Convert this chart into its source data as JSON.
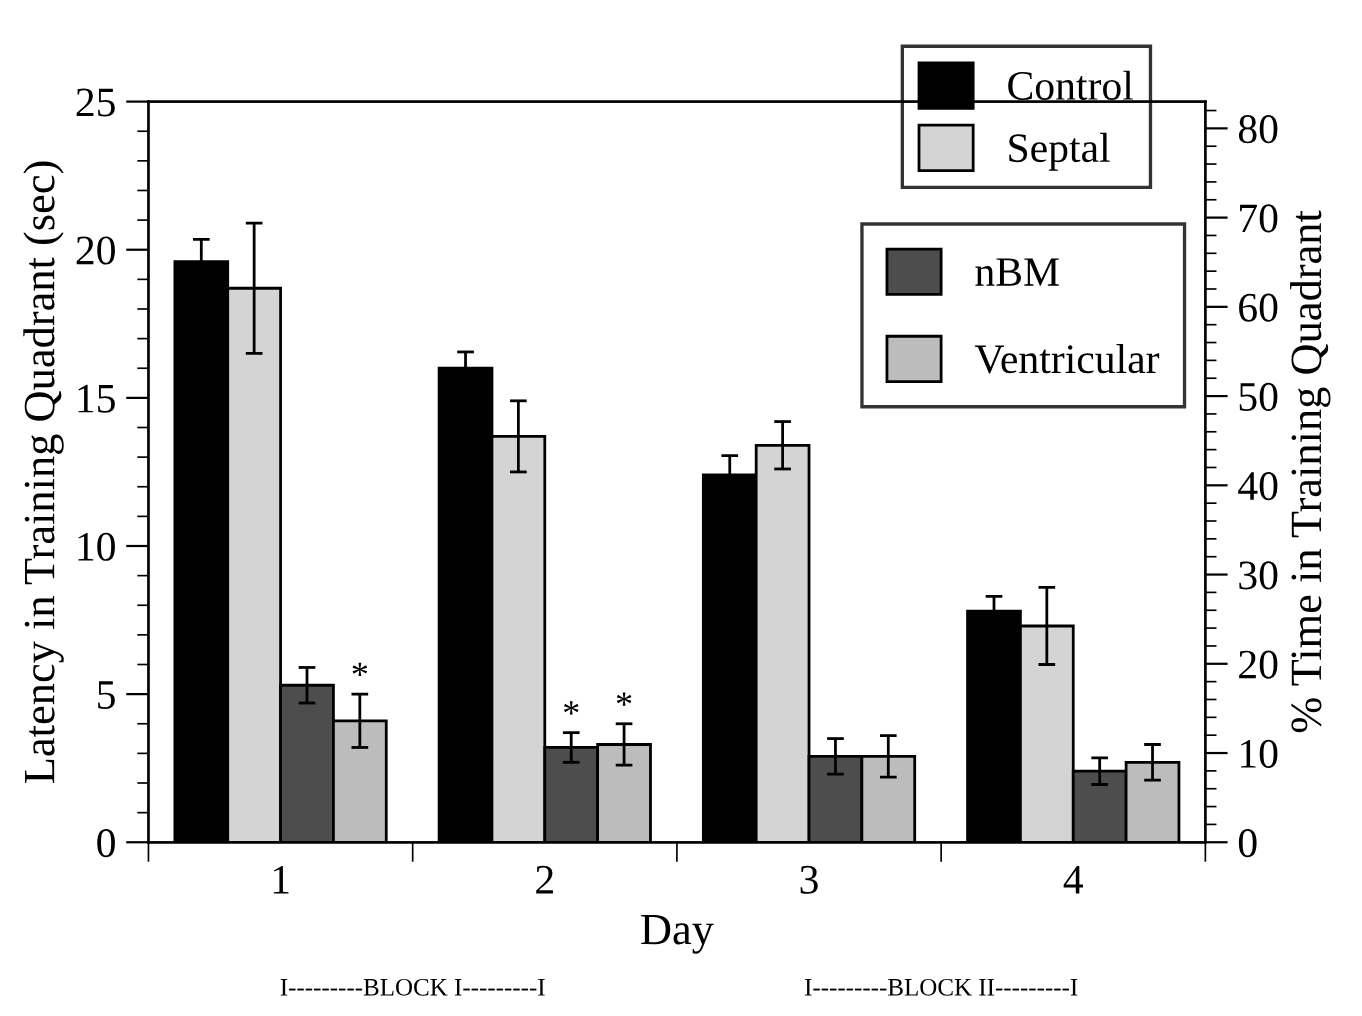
{
  "chart_data": {
    "type": "bar",
    "xlabel": "Day",
    "ylabel": "Latency in Training Quadrant (sec)",
    "y2label": "% Time in Training Quadrant",
    "categories": [
      "1",
      "2",
      "3",
      "4"
    ],
    "series": [
      {
        "name": "Control",
        "color": "#000000",
        "values": [
          19.6,
          16.0,
          12.4,
          7.8
        ],
        "errors": [
          0.75,
          0.55,
          0.65,
          0.5
        ]
      },
      {
        "name": "Septal",
        "color": "#d4d4d4",
        "values": [
          18.7,
          13.7,
          13.4,
          7.3
        ],
        "errors": [
          2.2,
          1.2,
          0.8,
          1.3
        ]
      },
      {
        "name": "nBM",
        "color": "#4d4d4d",
        "values": [
          5.3,
          3.2,
          2.9,
          2.4
        ],
        "errors": [
          0.6,
          0.5,
          0.6,
          0.45
        ]
      },
      {
        "name": "Ventricular",
        "color": "#bcbcbc",
        "values": [
          4.1,
          3.3,
          2.9,
          2.7
        ],
        "errors": [
          0.9,
          0.7,
          0.7,
          0.6
        ]
      }
    ],
    "ylim": [
      0,
      25
    ],
    "yticks": [
      0,
      5,
      10,
      15,
      20,
      25
    ],
    "y2lim": [
      0,
      83
    ],
    "y2ticks": [
      0,
      10,
      20,
      30,
      40,
      50,
      60,
      70,
      80
    ],
    "grid": false,
    "legend": "top right",
    "annotations": [
      {
        "text": "*",
        "x": "1",
        "y": 5.0
      },
      {
        "text": "*",
        "x": "2",
        "y": 3.7
      },
      {
        "text": "*",
        "x": "2",
        "y": 4.0
      },
      "I---------BLOCK I---------I",
      "I---------BLOCK II---------I"
    ]
  }
}
